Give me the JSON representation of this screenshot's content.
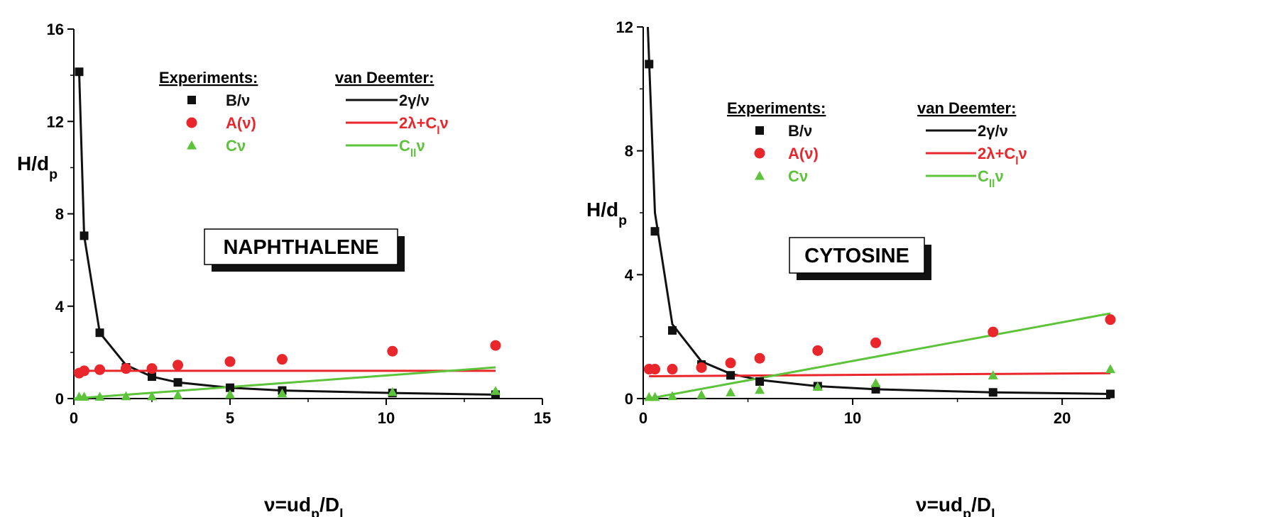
{
  "colors": {
    "black": "#111111",
    "red": "#e8262b",
    "green": "#5cc33a"
  },
  "chart_data": [
    {
      "type": "scatter",
      "compound": "NAPHTHALENE",
      "ylabel_main": "H/d",
      "ylabel_sub": "p",
      "xlabel_pre": "ν=ud",
      "xlabel_sub1": "p",
      "xlabel_mid": "/D",
      "xlabel_sub2": "l",
      "xlim": [
        0,
        15
      ],
      "ylim": [
        0,
        16
      ],
      "xticks": [
        0,
        5,
        10,
        15
      ],
      "yticks": [
        0,
        4,
        8,
        12,
        16
      ],
      "legend_experiments_title": "Experiments:",
      "legend_model_title": "van Deemter:",
      "series": [
        {
          "name": "B/ν",
          "marker": "square",
          "color": "black",
          "x": [
            0.17,
            0.33,
            0.83,
            1.67,
            2.5,
            3.33,
            5.0,
            6.67,
            10.2,
            13.5
          ],
          "y": [
            14.15,
            7.05,
            2.85,
            1.35,
            0.95,
            0.7,
            0.47,
            0.35,
            0.24,
            0.17
          ]
        },
        {
          "name": "A(ν)",
          "marker": "circle",
          "color": "red",
          "x": [
            0.17,
            0.33,
            0.83,
            1.67,
            2.5,
            3.33,
            5.0,
            6.67,
            10.2,
            13.5
          ],
          "y": [
            1.1,
            1.2,
            1.25,
            1.3,
            1.3,
            1.45,
            1.6,
            1.7,
            2.05,
            2.3
          ]
        },
        {
          "name": "Cν",
          "marker": "triangle",
          "color": "green",
          "x": [
            0.17,
            0.33,
            0.83,
            1.67,
            2.5,
            3.33,
            5.0,
            6.67,
            10.2,
            13.5
          ],
          "y": [
            0.08,
            0.08,
            0.08,
            0.1,
            0.1,
            0.15,
            0.18,
            0.22,
            0.28,
            0.33
          ]
        }
      ],
      "lines": [
        {
          "name_main": "2γ/ν",
          "color": "black",
          "x": [
            0.17,
            0.33,
            0.83,
            1.67,
            2.5,
            3.33,
            5.0,
            6.67,
            10.2,
            13.5
          ],
          "y": [
            14.15,
            7.05,
            2.85,
            1.45,
            0.95,
            0.7,
            0.47,
            0.35,
            0.24,
            0.17
          ]
        },
        {
          "name_main": "2λ+C",
          "name_sub": "l",
          "name_tail": "ν",
          "color": "red",
          "x": [
            0,
            13.5
          ],
          "y": [
            1.2,
            1.2
          ]
        },
        {
          "name_main": "C",
          "name_sub": "ll",
          "name_tail": "ν",
          "color": "green",
          "x": [
            0,
            13.5
          ],
          "y": [
            0,
            1.35
          ]
        }
      ]
    },
    {
      "type": "scatter",
      "compound": "CYTOSINE",
      "ylabel_main": "H/d",
      "ylabel_sub": "p",
      "xlabel_pre": "ν=ud",
      "xlabel_sub1": "p",
      "xlabel_mid": "/D",
      "xlabel_sub2": "l",
      "xlim": [
        0,
        22.3
      ],
      "ylim": [
        0,
        12
      ],
      "xticks": [
        0,
        10,
        20
      ],
      "yticks": [
        0,
        4,
        8,
        12
      ],
      "legend_experiments_title": "Experiments:",
      "legend_model_title": "van Deemter:",
      "series": [
        {
          "name": "B/ν",
          "marker": "square",
          "color": "black",
          "x": [
            0.28,
            0.56,
            1.39,
            2.78,
            4.17,
            5.56,
            8.33,
            11.1,
            16.7,
            22.3
          ],
          "y": [
            10.8,
            5.4,
            2.2,
            1.1,
            0.75,
            0.55,
            0.4,
            0.3,
            0.2,
            0.15
          ]
        },
        {
          "name": "A(ν)",
          "marker": "circle",
          "color": "red",
          "x": [
            0.28,
            0.56,
            1.39,
            2.78,
            4.17,
            5.56,
            8.33,
            11.1,
            16.7,
            22.3
          ],
          "y": [
            0.95,
            0.95,
            0.95,
            1.0,
            1.15,
            1.3,
            1.55,
            1.8,
            2.15,
            2.55
          ]
        },
        {
          "name": "Cν",
          "marker": "triangle",
          "color": "green",
          "x": [
            0.28,
            0.56,
            1.39,
            2.78,
            4.17,
            5.56,
            8.33,
            11.1,
            16.7,
            22.3
          ],
          "y": [
            0.05,
            0.05,
            0.08,
            0.12,
            0.2,
            0.28,
            0.38,
            0.5,
            0.75,
            0.95
          ]
        }
      ],
      "lines": [
        {
          "name_main": "2γ/ν",
          "color": "black",
          "x": [
            0.22,
            0.56,
            1.39,
            2.78,
            4.17,
            5.56,
            8.33,
            11.1,
            16.7,
            22.3
          ],
          "y": [
            12.0,
            6.0,
            2.4,
            1.2,
            0.8,
            0.6,
            0.4,
            0.3,
            0.2,
            0.15
          ]
        },
        {
          "name_main": "2λ+C",
          "name_sub": "l",
          "name_tail": "ν",
          "color": "red",
          "x": [
            0.28,
            22.3
          ],
          "y": [
            0.72,
            0.82
          ]
        },
        {
          "name_main": "C",
          "name_sub": "ll",
          "name_tail": "ν",
          "color": "green",
          "x": [
            0.28,
            22.3
          ],
          "y": [
            0.0,
            2.75
          ]
        }
      ]
    }
  ]
}
